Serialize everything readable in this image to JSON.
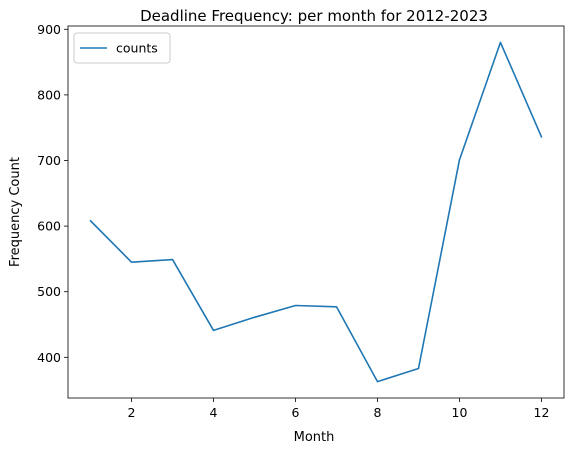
{
  "chart_data": {
    "type": "line",
    "title": "Deadline Frequency: per month for 2012-2023",
    "xlabel": "Month",
    "ylabel": "Frequency Count",
    "x": [
      1,
      2,
      3,
      4,
      5,
      6,
      7,
      8,
      9,
      10,
      11,
      12
    ],
    "series": [
      {
        "name": "counts",
        "color": "#1f77b4",
        "values": [
          608,
          545,
          549,
          441,
          461,
          479,
          477,
          363,
          383,
          701,
          880,
          736
        ]
      }
    ],
    "xlim": [
      0.45,
      12.55
    ],
    "ylim": [
      338,
      905
    ],
    "x_ticks": [
      2,
      4,
      6,
      8,
      10,
      12
    ],
    "y_ticks": [
      400,
      500,
      600,
      700,
      800,
      900
    ],
    "grid": false,
    "legend": "top-left"
  }
}
